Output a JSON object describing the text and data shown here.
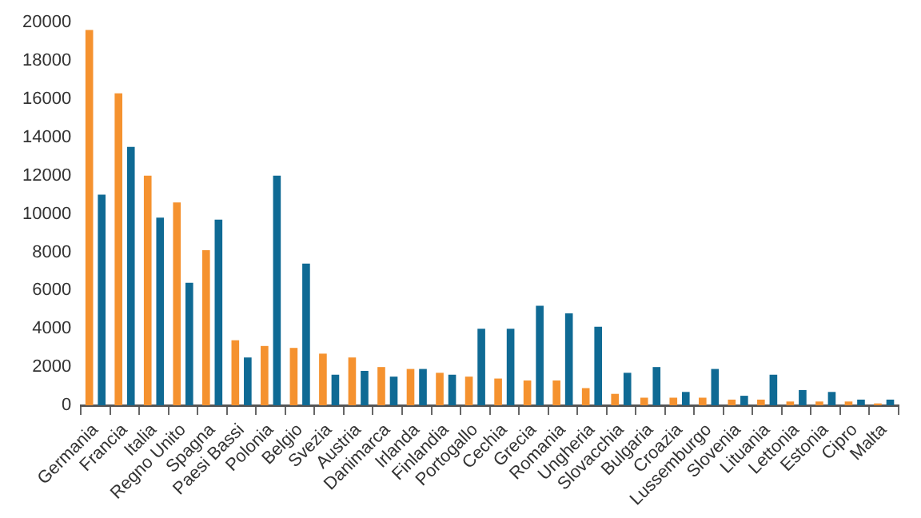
{
  "chart_data": {
    "type": "bar",
    "categories": [
      "Germania",
      "Francia",
      "Italia",
      "Regno Unito",
      "Spagna",
      "Paesi Bassi",
      "Polonia",
      "Belgio",
      "Svezia",
      "Austria",
      "Danimarca",
      "Irlanda",
      "Finlandia",
      "Portogallo",
      "Cechia",
      "Grecia",
      "Romania",
      "Ungheria",
      "Slovacchia",
      "Bulgaria",
      "Croazia",
      "Lussemburgo",
      "Slovenia",
      "Lituania",
      "Lettonia",
      "Estonia",
      "Cipro",
      "Malta"
    ],
    "series": [
      {
        "color": "#f5922f",
        "values": [
          19600,
          16300,
          12000,
          10600,
          8100,
          3400,
          3100,
          3000,
          2700,
          2500,
          2000,
          1900,
          1700,
          1500,
          1400,
          1300,
          1300,
          900,
          600,
          400,
          400,
          400,
          300,
          300,
          200,
          200,
          200,
          100
        ]
      },
      {
        "color": "#0f6a94",
        "values": [
          11000,
          13500,
          9800,
          6400,
          9700,
          2500,
          12000,
          7400,
          1600,
          1800,
          1500,
          1900,
          1600,
          4000,
          4000,
          5200,
          4800,
          4100,
          1700,
          2000,
          700,
          1900,
          500,
          1600,
          800,
          700,
          300,
          300
        ]
      }
    ],
    "ylim": [
      0,
      20000
    ],
    "yticks": [
      0,
      2000,
      4000,
      6000,
      8000,
      10000,
      12000,
      14000,
      16000,
      18000,
      20000
    ],
    "grid": false,
    "legend": false
  }
}
